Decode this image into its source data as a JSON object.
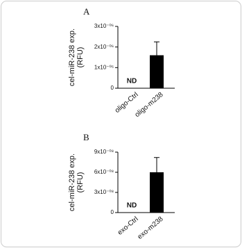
{
  "chart_data": [
    {
      "type": "bar",
      "label": "A",
      "ylabel": [
        "cel-miR-238 exp.",
        "(RFU)"
      ],
      "categories": [
        "oligo-Ctrl",
        "oligo-m238"
      ],
      "values": [
        null,
        1.6e-06
      ],
      "errors": [
        null,
        6.5e-07
      ],
      "value_labels": [
        "ND",
        null
      ],
      "color": "#000000",
      "ylim": [
        0,
        3e-06
      ],
      "yticks": [
        0,
        {
          "value": 1e-06,
          "label": "1x10⁻⁰⁶"
        },
        {
          "value": 2e-06,
          "label": "2x10⁻⁰⁶"
        },
        {
          "value": 3e-06,
          "label": "3x10⁻⁰⁶"
        }
      ]
    },
    {
      "type": "bar",
      "label": "B",
      "ylabel": [
        "cel-miR-238 exp.",
        "(RFU)"
      ],
      "categories": [
        "exo-Ctrl",
        "exo-m238"
      ],
      "values": [
        null,
        6e-08
      ],
      "errors": [
        null,
        2.2e-08
      ],
      "value_labels": [
        "ND",
        null
      ],
      "color": "#000000",
      "ylim": [
        0,
        9e-08
      ],
      "yticks": [
        0,
        {
          "value": 3e-08,
          "label": "3x10⁻⁰⁸"
        },
        {
          "value": 6e-08,
          "label": "6x10⁻⁰⁸"
        },
        {
          "value": 9e-08,
          "label": "9x10⁻⁰⁸"
        }
      ]
    }
  ]
}
